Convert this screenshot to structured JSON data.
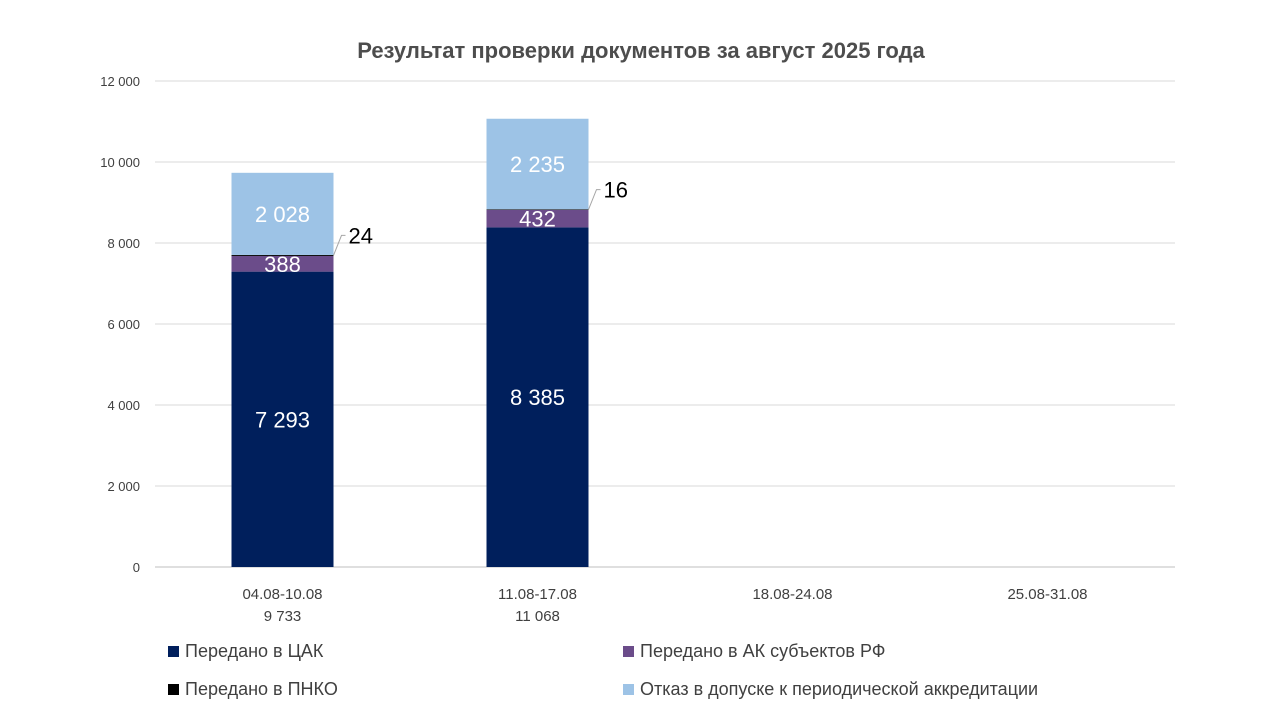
{
  "chart_data": {
    "type": "bar",
    "stacked": true,
    "title": "Результат проверки документов за август 2025 года",
    "categories": [
      "04.08-10.08",
      "11.08-17.08",
      "18.08-24.08",
      "25.08-31.08"
    ],
    "category_totals": [
      "9 733",
      "11 068",
      "",
      ""
    ],
    "series": [
      {
        "name": "Передано в ЦАК",
        "color": "#001f5c",
        "values": [
          7293,
          8385,
          null,
          null
        ],
        "labels": [
          "7 293",
          "8 385",
          "",
          ""
        ]
      },
      {
        "name": "Передано в АК субъектов РФ",
        "color": "#6b4c8a",
        "values": [
          388,
          432,
          null,
          null
        ],
        "labels": [
          "388",
          "432",
          "",
          ""
        ]
      },
      {
        "name": "Передано в ПНКО",
        "color": "#000000",
        "values": [
          24,
          16,
          null,
          null
        ],
        "labels": [
          "24",
          "16",
          "",
          ""
        ]
      },
      {
        "name": "Отказ в допуске к периодической аккредитации",
        "color": "#9dc3e6",
        "values": [
          2028,
          2235,
          null,
          null
        ],
        "labels": [
          "2 028",
          "2 235",
          "",
          ""
        ]
      }
    ],
    "ylim": [
      0,
      12000
    ],
    "yticks": [
      0,
      2000,
      4000,
      6000,
      8000,
      10000,
      12000
    ],
    "ytick_labels": [
      "0",
      "2 000",
      "4 000",
      "6 000",
      "8 000",
      "10 000",
      "12 000"
    ],
    "grid": true,
    "legend_position": "bottom",
    "xlabel": "",
    "ylabel": ""
  }
}
